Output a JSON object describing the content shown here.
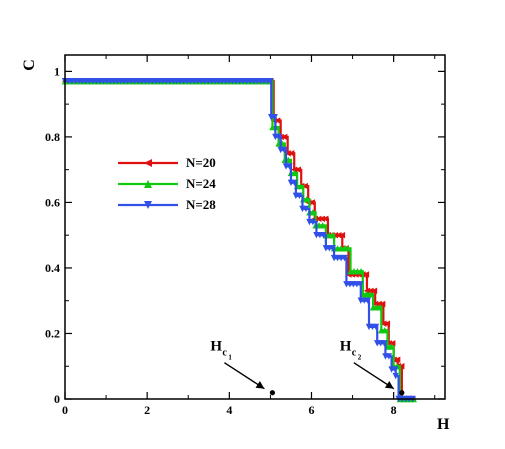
{
  "chart_data": {
    "type": "line",
    "xlabel": "H",
    "ylabel": "C",
    "xlim": [
      0,
      9.25
    ],
    "ylim": [
      0,
      1.05
    ],
    "xticks": [
      "0",
      "2",
      "4",
      "6",
      "8"
    ],
    "xtick_values": [
      0,
      2,
      4,
      6,
      8
    ],
    "yticks": [
      "0",
      "0.2",
      "0.4",
      "0.6",
      "0.8",
      "1"
    ],
    "ytick_values": [
      0,
      0.2,
      0.4,
      0.6,
      0.8,
      1
    ],
    "legend_position": "left-middle",
    "series": [
      {
        "name": "N=20",
        "color": "#e01010",
        "marker": "left-triangle",
        "steps": [
          [
            0,
            0.97
          ],
          [
            5.0,
            0.97
          ],
          [
            5.08,
            0.85
          ],
          [
            5.25,
            0.8
          ],
          [
            5.42,
            0.75
          ],
          [
            5.58,
            0.7
          ],
          [
            5.75,
            0.65
          ],
          [
            5.92,
            0.6
          ],
          [
            6.08,
            0.55
          ],
          [
            6.4,
            0.5
          ],
          [
            6.75,
            0.46
          ],
          [
            6.9,
            0.38
          ],
          [
            7.35,
            0.33
          ],
          [
            7.55,
            0.29
          ],
          [
            7.75,
            0.23
          ],
          [
            7.88,
            0.17
          ],
          [
            8.0,
            0.12
          ],
          [
            8.1,
            0.1
          ],
          [
            8.2,
            0.0
          ],
          [
            8.5,
            0.0
          ]
        ]
      },
      {
        "name": "N=24",
        "color": "#10c810",
        "marker": "up-triangle",
        "steps": [
          [
            0,
            0.97
          ],
          [
            5.0,
            0.97
          ],
          [
            5.05,
            0.83
          ],
          [
            5.2,
            0.78
          ],
          [
            5.35,
            0.73
          ],
          [
            5.5,
            0.69
          ],
          [
            5.65,
            0.65
          ],
          [
            5.8,
            0.61
          ],
          [
            5.95,
            0.57
          ],
          [
            6.1,
            0.53
          ],
          [
            6.35,
            0.5
          ],
          [
            6.55,
            0.46
          ],
          [
            6.95,
            0.39
          ],
          [
            7.25,
            0.32
          ],
          [
            7.5,
            0.28
          ],
          [
            7.7,
            0.21
          ],
          [
            7.85,
            0.16
          ],
          [
            8.0,
            0.1
          ],
          [
            8.15,
            0.0
          ],
          [
            8.5,
            0.0
          ]
        ]
      },
      {
        "name": "N=28",
        "color": "#3050e8",
        "marker": "down-triangle",
        "steps": [
          [
            0,
            0.97
          ],
          [
            5.0,
            0.97
          ],
          [
            5.02,
            0.86
          ],
          [
            5.12,
            0.8
          ],
          [
            5.25,
            0.76
          ],
          [
            5.38,
            0.71
          ],
          [
            5.5,
            0.66
          ],
          [
            5.62,
            0.62
          ],
          [
            5.78,
            0.58
          ],
          [
            5.95,
            0.54
          ],
          [
            6.12,
            0.5
          ],
          [
            6.35,
            0.46
          ],
          [
            6.55,
            0.43
          ],
          [
            6.85,
            0.35
          ],
          [
            7.2,
            0.3
          ],
          [
            7.4,
            0.22
          ],
          [
            7.6,
            0.17
          ],
          [
            7.8,
            0.13
          ],
          [
            7.95,
            0.09
          ],
          [
            8.05,
            0.07
          ],
          [
            8.12,
            0.0
          ],
          [
            8.5,
            0.0
          ]
        ]
      }
    ],
    "annotations": [
      {
        "text": "H",
        "subscript": "c",
        "subsubscript": "1",
        "point_x": 5.0,
        "point_y": 0.01
      },
      {
        "text": "H",
        "subscript": "c",
        "subsubscript": "2",
        "point_x": 8.15,
        "point_y": 0.01
      }
    ]
  }
}
